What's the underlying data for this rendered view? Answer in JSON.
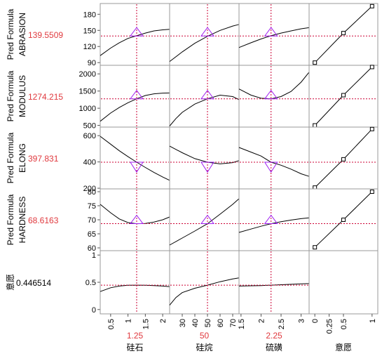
{
  "chart_data": {
    "type": "line",
    "title": "",
    "factors": [
      {
        "name": "硅石",
        "range": [
          0.2,
          2.2
        ],
        "current": 1.25,
        "current_label": "1.25",
        "ticks": [
          "0.5",
          "1",
          "1.5",
          "2"
        ],
        "tick_values": [
          0.5,
          1,
          1.5,
          2
        ]
      },
      {
        "name": "硅烷",
        "range": [
          20,
          75
        ],
        "current": 50,
        "current_label": "50",
        "ticks": [
          "30",
          "40",
          "50",
          "60",
          "70"
        ],
        "tick_values": [
          30,
          40,
          50,
          60,
          70
        ]
      },
      {
        "name": "硫磺",
        "range": [
          1.45,
          3.2
        ],
        "current": 2.25,
        "current_label": "2.25",
        "ticks": [
          "1.5",
          "2",
          "2.5",
          "3"
        ],
        "tick_values": [
          1.5,
          2,
          2.5,
          3
        ]
      },
      {
        "name": "意愿",
        "range": [
          -0.1,
          1.1
        ],
        "current": null,
        "current_label": "",
        "ticks": [
          "0",
          "0.25",
          "0.5",
          "1"
        ],
        "tick_values": [
          0,
          0.25,
          0.5,
          1
        ]
      }
    ],
    "responses": [
      {
        "label_line1": "Pred Formula",
        "label_line2": "ABRASION",
        "value": "139.5509",
        "current": 139.5509,
        "range": [
          85,
          200
        ],
        "ticks": [
          "90",
          "120",
          "150",
          "180"
        ],
        "tick_values": [
          90,
          120,
          150,
          180
        ],
        "curves": [
          {
            "x": [
              0.2,
              0.5,
              0.75,
              1.0,
              1.25,
              1.5,
              1.75,
              2.0,
              2.2
            ],
            "y": [
              103,
              117,
              127,
              135,
              140,
              145,
              149,
              151,
              152
            ]
          },
          {
            "x": [
              20,
              30,
              40,
              50,
              60,
              70,
              75
            ],
            "y": [
              92,
              110,
              126,
              139,
              150,
              158,
              161
            ]
          },
          {
            "x": [
              1.45,
              1.75,
              2.0,
              2.25,
              2.5,
              2.75,
              3.0,
              3.2
            ],
            "y": [
              118,
              127,
              134,
              140,
              145,
              149,
              153,
              155
            ]
          },
          {
            "x": [
              0,
              0.5,
              1
            ],
            "y": [
              90,
              145,
              195
            ]
          }
        ]
      },
      {
        "label_line1": "Pred Formula",
        "label_line2": "MODULUS",
        "value": "1274.215",
        "current": 1274.215,
        "range": [
          450,
          2250
        ],
        "ticks": [
          "500",
          "1000",
          "1500",
          "2000"
        ],
        "tick_values": [
          500,
          1000,
          1500,
          2000
        ],
        "curves": [
          {
            "x": [
              0.2,
              0.5,
              0.75,
              1.0,
              1.25,
              1.5,
              1.75,
              2.0,
              2.2
            ],
            "y": [
              620,
              860,
              1020,
              1160,
              1275,
              1370,
              1420,
              1440,
              1445
            ]
          },
          {
            "x": [
              20,
              25,
              30,
              40,
              50,
              60,
              70,
              75
            ],
            "y": [
              480,
              700,
              880,
              1120,
              1275,
              1380,
              1340,
              1250
            ]
          },
          {
            "x": [
              1.45,
              1.75,
              2.0,
              2.25,
              2.5,
              2.75,
              3.0,
              3.2
            ],
            "y": [
              1560,
              1380,
              1290,
              1275,
              1340,
              1490,
              1760,
              2050
            ]
          },
          {
            "x": [
              0,
              0.5,
              1
            ],
            "y": [
              500,
              1380,
              2200
            ]
          }
        ]
      },
      {
        "label_line1": "Pred Formula",
        "label_line2": "ELONG",
        "value": "397.831",
        "current": 397.831,
        "range": [
          195,
          665
        ],
        "ticks": [
          "200",
          "400",
          "600"
        ],
        "tick_values": [
          200,
          400,
          600
        ],
        "curves": [
          {
            "x": [
              0.2,
              0.5,
              0.75,
              1.0,
              1.25,
              1.5,
              1.75,
              2.0,
              2.2
            ],
            "y": [
              595,
              535,
              485,
              440,
              398,
              358,
              320,
              285,
              260
            ]
          },
          {
            "x": [
              20,
              30,
              40,
              50,
              60,
              70,
              75
            ],
            "y": [
              520,
              470,
              425,
              398,
              385,
              395,
              410
            ]
          },
          {
            "x": [
              1.45,
              1.75,
              2.0,
              2.25,
              2.5,
              2.75,
              3.0,
              3.2
            ],
            "y": [
              510,
              475,
              445,
              398,
              375,
              345,
              310,
              290
            ]
          },
          {
            "x": [
              0,
              0.5,
              1
            ],
            "y": [
              205,
              420,
              650
            ]
          }
        ]
      },
      {
        "label_line1": "Pred Formula",
        "label_line2": "HARDNESS",
        "value": "68.6163",
        "current": 68.6163,
        "range": [
          59,
          81
        ],
        "ticks": [
          "60",
          "65",
          "70",
          "75",
          "80"
        ],
        "tick_values": [
          60,
          65,
          70,
          75,
          80
        ],
        "curves": [
          {
            "x": [
              0.2,
              0.5,
              0.75,
              1.0,
              1.25,
              1.5,
              1.75,
              2.0,
              2.2
            ],
            "y": [
              75.5,
              72.5,
              70.3,
              69.0,
              68.6,
              68.7,
              69.2,
              70.0,
              71.0
            ]
          },
          {
            "x": [
              20,
              30,
              40,
              50,
              60,
              70,
              75
            ],
            "y": [
              61,
              63.5,
              66,
              68.6,
              72,
              75.5,
              77.5
            ]
          },
          {
            "x": [
              1.45,
              1.75,
              2.0,
              2.25,
              2.5,
              2.75,
              3.0,
              3.2
            ],
            "y": [
              65.5,
              66.7,
              67.7,
              68.6,
              69.3,
              69.9,
              70.4,
              70.7
            ]
          },
          {
            "x": [
              0,
              0.5,
              1
            ],
            "y": [
              60.2,
              70,
              80
            ]
          }
        ]
      },
      {
        "label_line1": "意愿",
        "label_line2": "",
        "value": "0.446514",
        "current": 0.446514,
        "range": [
          -0.08,
          1.08
        ],
        "ticks": [
          "0",
          "0.5",
          "1"
        ],
        "tick_values": [
          0,
          0.5,
          1
        ],
        "curves": [
          {
            "x": [
              0.2,
              0.5,
              0.75,
              1.0,
              1.25,
              1.5,
              1.75,
              2.0,
              2.2
            ],
            "y": [
              0.33,
              0.4,
              0.43,
              0.445,
              0.447,
              0.445,
              0.44,
              0.43,
              0.42
            ]
          },
          {
            "x": [
              20,
              25,
              30,
              40,
              50,
              60,
              70,
              75
            ],
            "y": [
              0.08,
              0.22,
              0.31,
              0.39,
              0.447,
              0.51,
              0.56,
              0.58
            ]
          },
          {
            "x": [
              1.45,
              1.75,
              2.0,
              2.25,
              2.5,
              2.75,
              3.0,
              3.2
            ],
            "y": [
              0.43,
              0.435,
              0.44,
              0.447,
              0.455,
              0.463,
              0.47,
              0.475
            ]
          },
          null
        ]
      }
    ],
    "colors": {
      "curve": "#000000",
      "crosshair": "#cc0033",
      "triangle": "#a020f0",
      "label_value": "#e0393e",
      "grid": "#999999"
    }
  }
}
